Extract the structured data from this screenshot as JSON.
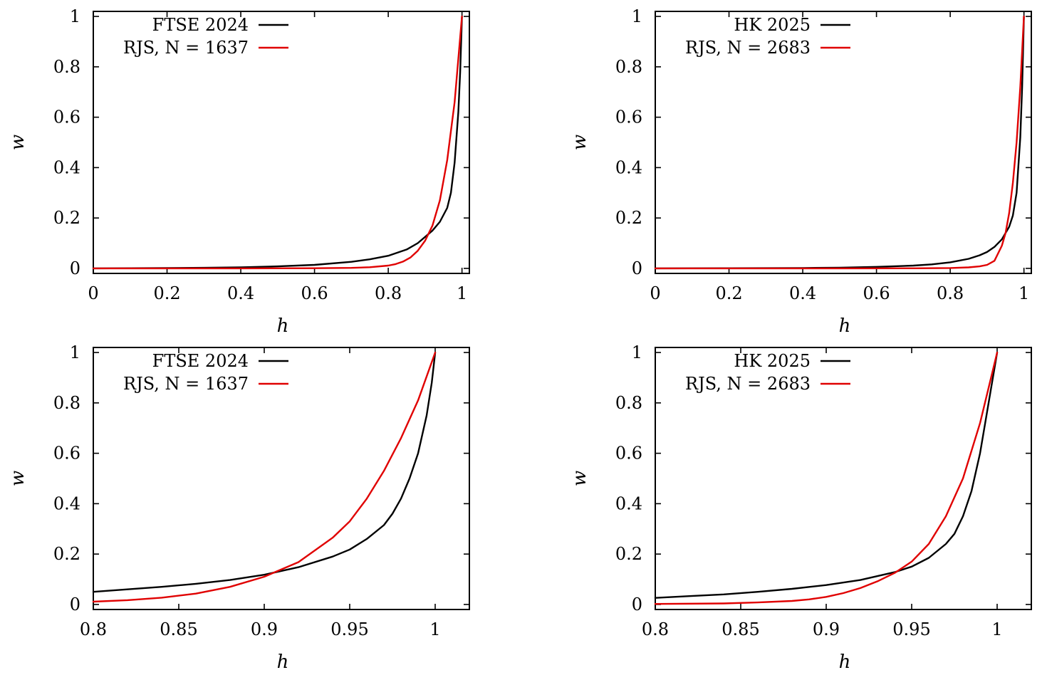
{
  "chart_data": [
    {
      "type": "line",
      "xlabel": "h",
      "ylabel": "w",
      "xlim": [
        0,
        1.02
      ],
      "ylim": [
        -0.02,
        1.02
      ],
      "xticks": [
        "0",
        "0.2",
        "0.4",
        "0.6",
        "0.8",
        "1"
      ],
      "yticks": [
        "0",
        "0.2",
        "0.4",
        "0.6",
        "0.8",
        "1"
      ],
      "legend_position": "top-right",
      "series": [
        {
          "name": "FTSE 2024",
          "color": "#000000",
          "x": [
            0,
            0.1,
            0.2,
            0.3,
            0.4,
            0.5,
            0.6,
            0.7,
            0.75,
            0.8,
            0.85,
            0.88,
            0.9,
            0.92,
            0.94,
            0.96,
            0.97,
            0.98,
            0.99,
            0.995,
            1.0
          ],
          "y": [
            0,
            0.0006,
            0.0013,
            0.0022,
            0.0042,
            0.008,
            0.014,
            0.026,
            0.036,
            0.05,
            0.075,
            0.1,
            0.125,
            0.15,
            0.185,
            0.24,
            0.3,
            0.42,
            0.62,
            0.78,
            1.0
          ]
        },
        {
          "name": "RJS, N = 1637",
          "color": "#e00000",
          "x": [
            0,
            0.2,
            0.4,
            0.6,
            0.7,
            0.75,
            0.8,
            0.82,
            0.84,
            0.86,
            0.88,
            0.9,
            0.92,
            0.94,
            0.96,
            0.98,
            1.0
          ],
          "y": [
            0,
            0,
            0,
            0.0005,
            0.002,
            0.0045,
            0.011,
            0.017,
            0.027,
            0.043,
            0.07,
            0.11,
            0.17,
            0.27,
            0.43,
            0.66,
            1.0
          ]
        }
      ]
    },
    {
      "type": "line",
      "xlabel": "h",
      "ylabel": "w",
      "xlim": [
        0,
        1.02
      ],
      "ylim": [
        -0.02,
        1.02
      ],
      "xticks": [
        "0",
        "0.2",
        "0.4",
        "0.6",
        "0.8",
        "1"
      ],
      "yticks": [
        "0",
        "0.2",
        "0.4",
        "0.6",
        "0.8",
        "1"
      ],
      "legend_position": "top-right",
      "series": [
        {
          "name": "HK 2025",
          "color": "#000000",
          "x": [
            0,
            0.2,
            0.4,
            0.5,
            0.6,
            0.7,
            0.75,
            0.8,
            0.85,
            0.88,
            0.9,
            0.92,
            0.94,
            0.96,
            0.97,
            0.98,
            0.99,
            0.995,
            1.0
          ],
          "y": [
            0,
            0.0005,
            0.0015,
            0.003,
            0.006,
            0.011,
            0.016,
            0.024,
            0.038,
            0.052,
            0.065,
            0.085,
            0.115,
            0.165,
            0.21,
            0.3,
            0.52,
            0.72,
            1.0
          ]
        },
        {
          "name": "RJS, N = 2683",
          "color": "#e00000",
          "x": [
            0,
            0.5,
            0.7,
            0.8,
            0.85,
            0.88,
            0.9,
            0.92,
            0.94,
            0.95,
            0.96,
            0.97,
            0.98,
            0.99,
            1.0
          ],
          "y": [
            0,
            0,
            0.0003,
            0.0015,
            0.004,
            0.008,
            0.014,
            0.03,
            0.09,
            0.14,
            0.22,
            0.34,
            0.5,
            0.72,
            1.0
          ]
        }
      ]
    },
    {
      "type": "line",
      "xlabel": "h",
      "ylabel": "w",
      "xlim": [
        0.8,
        1.02
      ],
      "ylim": [
        -0.02,
        1.02
      ],
      "xticks": [
        "0.8",
        "0.85",
        "0.9",
        "0.95",
        "1"
      ],
      "yticks": [
        "0",
        "0.2",
        "0.4",
        "0.6",
        "0.8",
        "1"
      ],
      "legend_position": "top-left",
      "series": [
        {
          "name": "FTSE 2024",
          "color": "#000000",
          "x": [
            0.8,
            0.82,
            0.84,
            0.86,
            0.88,
            0.9,
            0.92,
            0.94,
            0.95,
            0.96,
            0.97,
            0.975,
            0.98,
            0.985,
            0.99,
            0.995,
            0.998,
            1.0
          ],
          "y": [
            0.05,
            0.06,
            0.07,
            0.082,
            0.097,
            0.118,
            0.148,
            0.19,
            0.218,
            0.26,
            0.315,
            0.36,
            0.42,
            0.5,
            0.6,
            0.75,
            0.88,
            1.0
          ]
        },
        {
          "name": "RJS, N = 1637",
          "color": "#e00000",
          "x": [
            0.8,
            0.82,
            0.84,
            0.86,
            0.88,
            0.9,
            0.92,
            0.94,
            0.95,
            0.96,
            0.97,
            0.98,
            0.99,
            1.0
          ],
          "y": [
            0.011,
            0.017,
            0.027,
            0.043,
            0.07,
            0.11,
            0.168,
            0.265,
            0.33,
            0.42,
            0.53,
            0.66,
            0.81,
            1.0
          ]
        }
      ]
    },
    {
      "type": "line",
      "xlabel": "h",
      "ylabel": "w",
      "xlim": [
        0.8,
        1.02
      ],
      "ylim": [
        -0.02,
        1.02
      ],
      "xticks": [
        "0.8",
        "0.85",
        "0.9",
        "0.95",
        "1"
      ],
      "yticks": [
        "0",
        "0.2",
        "0.4",
        "0.6",
        "0.8",
        "1"
      ],
      "legend_position": "top-left",
      "series": [
        {
          "name": "HK 2025",
          "color": "#000000",
          "x": [
            0.8,
            0.82,
            0.84,
            0.86,
            0.88,
            0.9,
            0.92,
            0.94,
            0.95,
            0.96,
            0.97,
            0.975,
            0.98,
            0.985,
            0.99,
            0.993,
            0.996,
            0.998,
            1.0
          ],
          "y": [
            0.026,
            0.033,
            0.04,
            0.05,
            0.062,
            0.077,
            0.097,
            0.128,
            0.15,
            0.185,
            0.24,
            0.28,
            0.35,
            0.45,
            0.6,
            0.72,
            0.84,
            0.92,
            1.0
          ]
        },
        {
          "name": "RJS, N = 2683",
          "color": "#e00000",
          "x": [
            0.8,
            0.84,
            0.86,
            0.88,
            0.89,
            0.9,
            0.91,
            0.92,
            0.93,
            0.94,
            0.95,
            0.96,
            0.97,
            0.98,
            0.99,
            1.0
          ],
          "y": [
            0.002,
            0.004,
            0.008,
            0.014,
            0.02,
            0.03,
            0.045,
            0.065,
            0.092,
            0.125,
            0.17,
            0.24,
            0.35,
            0.5,
            0.72,
            1.0
          ]
        }
      ]
    }
  ]
}
